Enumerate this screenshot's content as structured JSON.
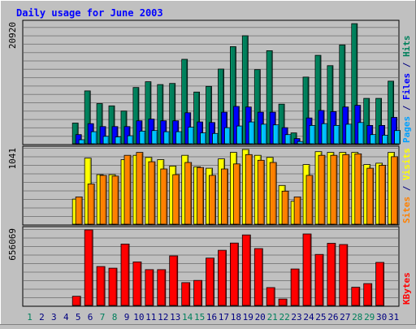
{
  "chart_data": {
    "type": "bar",
    "title": "Daily usage for June 2003",
    "days": [
      "1",
      "2",
      "3",
      "4",
      "5",
      "6",
      "7",
      "8",
      "9",
      "10",
      "11",
      "12",
      "13",
      "14",
      "15",
      "16",
      "17",
      "18",
      "19",
      "20",
      "21",
      "22",
      "23",
      "24",
      "25",
      "26",
      "27",
      "28",
      "29",
      "30",
      "31"
    ],
    "weekend_days": [
      "1",
      "7",
      "8",
      "14",
      "15",
      "21",
      "22",
      "28",
      "29"
    ],
    "panels": [
      {
        "id": "hits-files-pages",
        "max_label": "20920",
        "ymax": 20920,
        "ylabel_parts": [
          {
            "text": "Pages",
            "color": "#00a0ff"
          },
          {
            "text": " / ",
            "color": "#000080"
          },
          {
            "text": "Files",
            "color": "#0000ff"
          },
          {
            "text": " / ",
            "color": "#000080"
          },
          {
            "text": "Hits",
            "color": "#00805c"
          }
        ],
        "series": [
          {
            "name": "Hits",
            "color": "#00805c",
            "values": [
              0,
              0,
              0,
              0,
              3600,
              9200,
              7000,
              6600,
              5700,
              9800,
              10800,
              10300,
              10500,
              14700,
              9000,
              10000,
              13000,
              16900,
              18800,
              12900,
              16200,
              6900,
              1900,
              11600,
              15400,
              13600,
              17200,
              20900,
              7900,
              7900,
              10900
            ]
          },
          {
            "name": "Files",
            "color": "#0000ff",
            "values": [
              0,
              0,
              0,
              0,
              1600,
              3500,
              3000,
              3000,
              3000,
              4000,
              4300,
              4000,
              4000,
              5400,
              3800,
              3700,
              5500,
              6500,
              6400,
              5500,
              5500,
              2800,
              900,
              4500,
              5800,
              5600,
              6400,
              6700,
              3200,
              3200,
              4600
            ]
          },
          {
            "name": "Pages",
            "color": "#00c0ff",
            "values": [
              0,
              0,
              0,
              0,
              700,
              2100,
              1300,
              1200,
              1400,
              2200,
              2300,
              2100,
              2100,
              2900,
              1900,
              1800,
              2800,
              3100,
              3800,
              3400,
              3300,
              1600,
              400,
              3200,
              3500,
              3200,
              3400,
              3700,
              1600,
              1500,
              2300
            ]
          }
        ]
      },
      {
        "id": "visits-sites",
        "max_label": "1041",
        "ymax": 1041,
        "ylabel_parts": [
          {
            "text": "Sites",
            "color": "#ff8000"
          },
          {
            "text": " / ",
            "color": "#000080"
          },
          {
            "text": "Visits",
            "color": "#ffff00"
          }
        ],
        "series": [
          {
            "name": "Visits",
            "color": "#ffff00",
            "values": [
              0,
              0,
              0,
              0,
              350,
              920,
              690,
              690,
              900,
              960,
              930,
              900,
              810,
              960,
              800,
              780,
              910,
              1000,
              1041,
              960,
              930,
              540,
              320,
              830,
              1010,
              1000,
              1000,
              1000,
              830,
              850,
              1000
            ]
          },
          {
            "name": "Sites",
            "color": "#ff8000",
            "values": [
              0,
              0,
              0,
              0,
              380,
              560,
              680,
              670,
              960,
              1000,
              870,
              770,
              690,
              860,
              790,
              680,
              770,
              840,
              970,
              890,
              860,
              460,
              380,
              680,
              960,
              960,
              970,
              980,
              780,
              820,
              940
            ]
          }
        ]
      },
      {
        "id": "kbytes",
        "max_label": "656069",
        "ymax": 656069,
        "ylabel_parts": [
          {
            "text": "KBytes",
            "color": "#ff0000"
          }
        ],
        "series": [
          {
            "name": "KBytes",
            "color": "#ff0000",
            "values": [
              0,
              0,
              0,
              0,
              80000,
              656069,
              338000,
              324000,
              533000,
              378000,
              311000,
              311000,
              430000,
              198000,
              217000,
              411000,
              479000,
              542000,
              612000,
              494000,
              155000,
              56000,
              317000,
              621000,
              443000,
              540000,
              529000,
              158000,
              190000,
              374000,
              0
            ]
          }
        ]
      }
    ]
  }
}
